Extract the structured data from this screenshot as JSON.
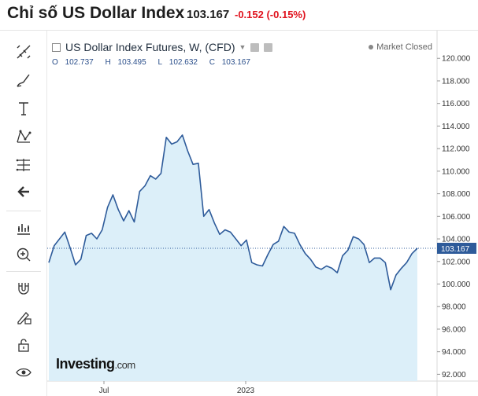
{
  "header": {
    "title": "Chỉ số US Dollar Index",
    "price": "103.167",
    "change": "-0.152 (-0.15%)"
  },
  "toolbar": {
    "tools": [
      "crosshair-icon",
      "brush-icon",
      "text-icon",
      "pattern-icon",
      "measure-icon",
      "back-arrow-icon",
      "indicators-icon",
      "zoom-icon",
      "magnet-icon",
      "lock-drawing-icon",
      "lock-icon",
      "eye-icon"
    ]
  },
  "legend": {
    "title": "US Dollar Index Futures, W, (CFD)",
    "open_label": "O",
    "open": "102.737",
    "high_label": "H",
    "high": "103.495",
    "low_label": "L",
    "low": "102.632",
    "close_label": "C",
    "close": "103.167",
    "market_status": "Market Closed"
  },
  "logo": {
    "text": "Investing",
    "suffix": ".com"
  },
  "colors": {
    "line": "#2e5b9a",
    "area": "#dceff9",
    "down": "#e0131e"
  },
  "chart_data": {
    "type": "area",
    "title": "US Dollar Index Futures, W, (CFD)",
    "xlabel": "",
    "ylabel": "",
    "x_ticks": [
      "Jul",
      "2023"
    ],
    "y_ticks": [
      "92.000",
      "94.000",
      "96.000",
      "98.000",
      "100.000",
      "102.000",
      "104.000",
      "106.000",
      "108.000",
      "110.000",
      "112.000",
      "114.000",
      "116.000",
      "118.000",
      "120.000"
    ],
    "ylim": [
      91.4,
      121.2
    ],
    "last_price_label": "103.167",
    "series": [
      {
        "values": [
          101.9,
          103.4,
          104.0,
          104.6,
          103.2,
          101.7,
          102.2,
          104.3,
          104.5,
          104.0,
          104.8,
          106.8,
          107.9,
          106.6,
          105.6,
          106.5,
          105.5,
          108.2,
          108.7,
          109.6,
          109.3,
          109.8,
          113.0,
          112.4,
          112.6,
          113.2,
          111.8,
          110.6,
          110.7,
          106.0,
          106.6,
          105.4,
          104.4,
          104.8,
          104.6,
          104.0,
          103.4,
          103.9,
          101.9,
          101.7,
          101.6,
          102.6,
          103.5,
          103.8,
          105.1,
          104.6,
          104.5,
          103.5,
          102.7,
          102.2,
          101.5,
          101.3,
          101.6,
          101.4,
          101.0,
          102.5,
          103.0,
          104.2,
          104.0,
          103.5,
          101.9,
          102.3,
          102.3,
          101.9,
          99.5,
          100.8,
          101.4,
          101.9,
          102.7,
          103.17
        ]
      }
    ],
    "grid": false,
    "legend_position": "top-left"
  }
}
